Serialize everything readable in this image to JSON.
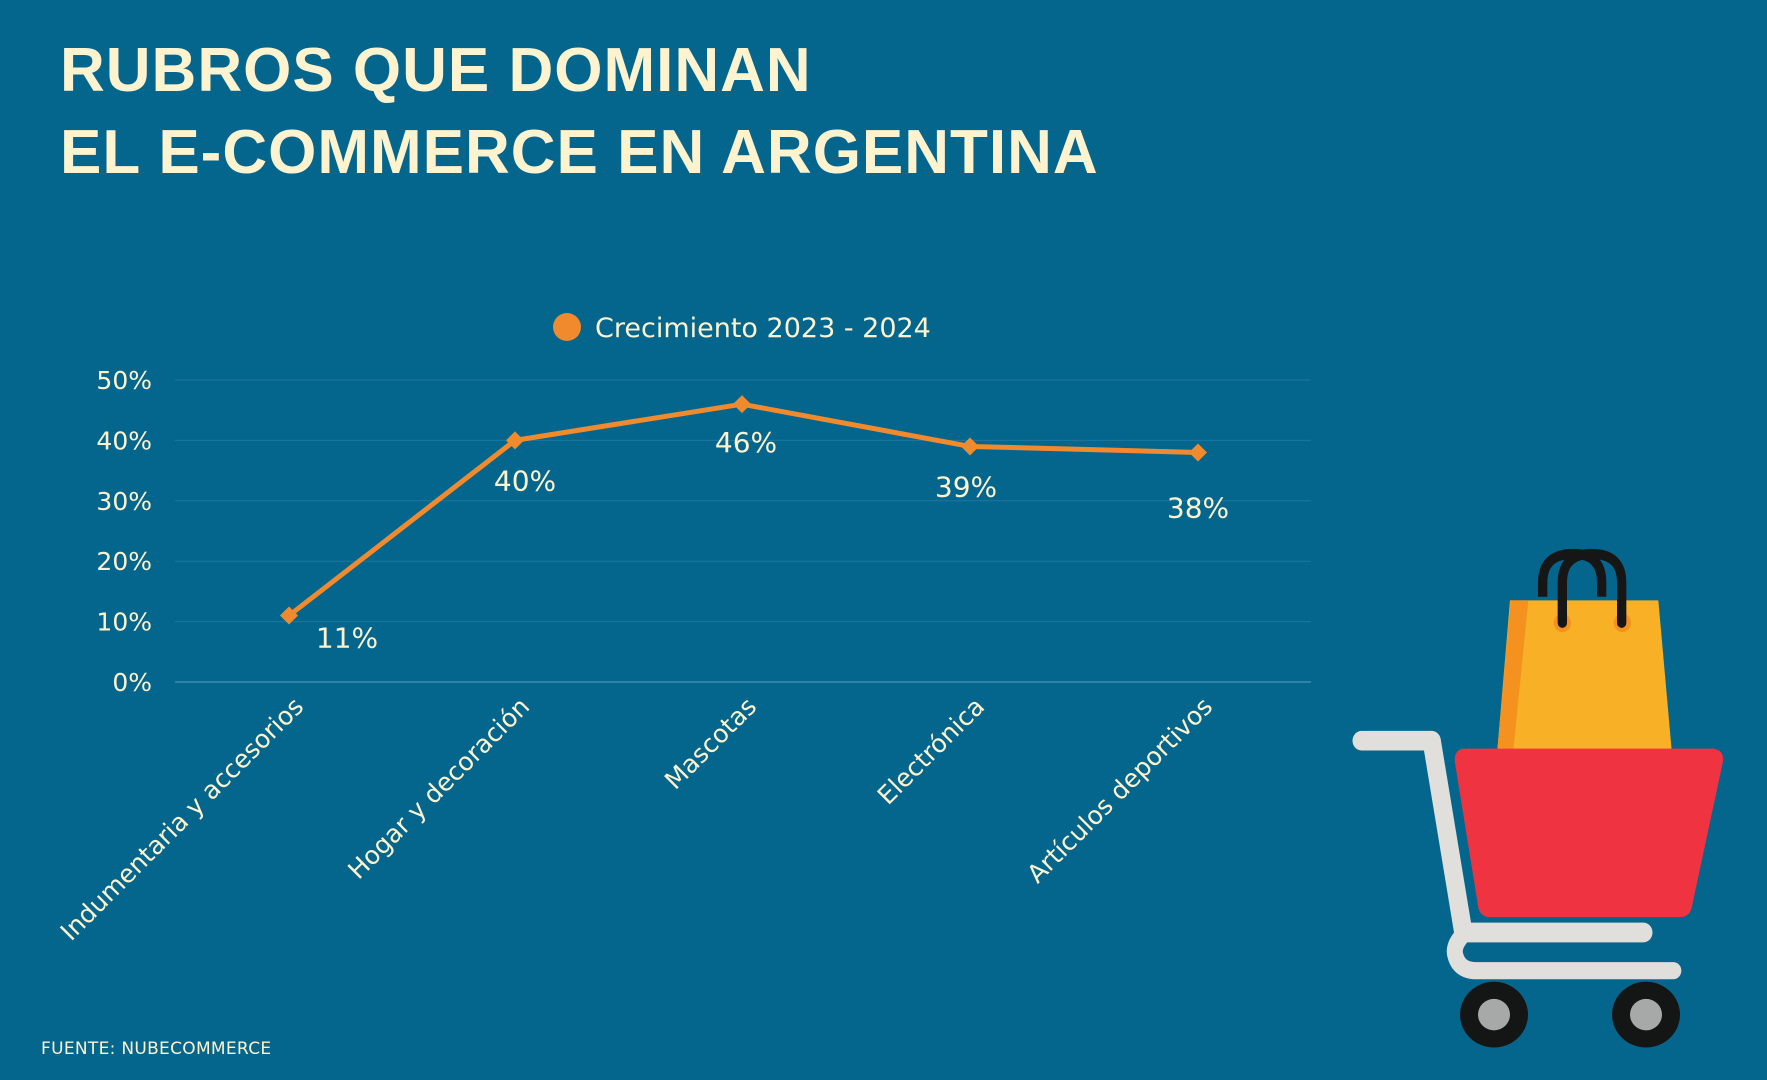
{
  "title": {
    "line1": "RUBROS QUE DOMINAN",
    "line2": "EL E-COMMERCE EN ARGENTINA"
  },
  "footer": "FUENTE: NUBECOMMERCE",
  "illustration": "shopping-cart-with-bag-icon",
  "colors": {
    "background": "#05668d",
    "text": "#fdf3cf",
    "series": "#f08a2c",
    "cart_basket": "#ef3340",
    "bag": "#f8b026"
  },
  "chart_data": {
    "type": "line",
    "categories": [
      "Indumentaria y accesorios",
      "Hogar y decoración",
      "Mascotas",
      "Electrónica",
      "Artículos deportivos"
    ],
    "series": [
      {
        "name": "Crecimiento 2023 - 2024",
        "values": [
          11,
          40,
          46,
          39,
          38
        ],
        "labels": [
          "11%",
          "40%",
          "46%",
          "39%",
          "38%"
        ],
        "marker": "diamond"
      }
    ],
    "yticks": [
      "0%",
      "10%",
      "20%",
      "30%",
      "40%",
      "50%"
    ],
    "ylim": [
      0,
      50
    ],
    "grid": true,
    "legend": "top-center"
  }
}
